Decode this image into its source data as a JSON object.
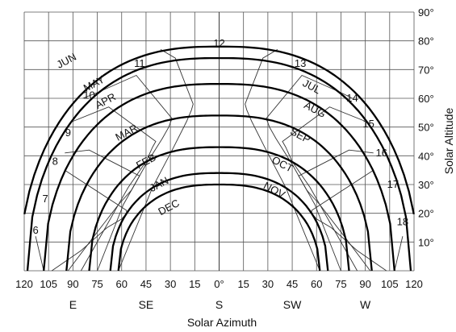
{
  "chart_data": {
    "type": "line",
    "title": "",
    "xlabel": "Solar Azimuth",
    "ylabel": "Solar Altitude",
    "xlim": [
      -120,
      120
    ],
    "ylim": [
      0,
      90
    ],
    "grid": true,
    "x_tick_labels": [
      "120",
      "105",
      "90",
      "75",
      "60",
      "45",
      "30",
      "15",
      "0°",
      "15",
      "30",
      "45",
      "60",
      "75",
      "90",
      "105",
      "120"
    ],
    "y_tick_labels": [
      "10°",
      "20°",
      "30°",
      "40°",
      "50°",
      "60°",
      "70°",
      "80°",
      "90°"
    ],
    "direction_labels": [
      {
        "text": "E",
        "azimuth": -90
      },
      {
        "text": "SE",
        "azimuth": -45
      },
      {
        "text": "S",
        "azimuth": 0
      },
      {
        "text": "SW",
        "azimuth": 45
      },
      {
        "text": "W",
        "azimuth": 90
      }
    ],
    "series": [
      {
        "name": "JUN",
        "noon_altitude": 78,
        "horizon_azimuth": 123
      },
      {
        "name": "MAY / JUL",
        "noon_altitude": 74,
        "horizon_azimuth": 118
      },
      {
        "name": "APR / AUG",
        "noon_altitude": 65,
        "horizon_azimuth": 108
      },
      {
        "name": "MAR / SEP",
        "noon_altitude": 54,
        "horizon_azimuth": 94
      },
      {
        "name": "FEB / OCT",
        "noon_altitude": 43,
        "horizon_azimuth": 80
      },
      {
        "name": "JAN / NOV",
        "noon_altitude": 34,
        "horizon_azimuth": 67
      },
      {
        "name": "DEC",
        "noon_altitude": 30,
        "horizon_azimuth": 62
      }
    ],
    "month_labels": [
      {
        "text": "JUN",
        "azimuth": -93,
        "altitude": 72
      },
      {
        "text": "MAY",
        "azimuth": -76,
        "altitude": 64
      },
      {
        "text": "APR",
        "azimuth": -69,
        "altitude": 58
      },
      {
        "text": "MAR",
        "azimuth": -56,
        "altitude": 47
      },
      {
        "text": "FEB",
        "azimuth": -44,
        "altitude": 37
      },
      {
        "text": "JAN",
        "azimuth": -36,
        "altitude": 29
      },
      {
        "text": "DEC",
        "azimuth": -30,
        "altitude": 21
      },
      {
        "text": "JUL",
        "azimuth": 56,
        "altitude": 63
      },
      {
        "text": "AUG",
        "azimuth": 58,
        "altitude": 55
      },
      {
        "text": "SEP",
        "azimuth": 49,
        "altitude": 46
      },
      {
        "text": "OCT",
        "azimuth": 38,
        "altitude": 36
      },
      {
        "text": "NOV",
        "azimuth": 33,
        "altitude": 27
      }
    ],
    "hour_lines": [
      {
        "label": "6",
        "points": [
          [
            -108,
            0
          ],
          [
            -113,
            12
          ]
        ],
        "label_at": [
          -113,
          14
        ]
      },
      {
        "label": "7",
        "points": [
          [
            -103,
            0
          ],
          [
            -85,
            7
          ],
          [
            -69,
            15
          ],
          [
            -60,
            18
          ],
          [
            -57,
            20
          ],
          [
            -57,
            21
          ],
          [
            -95,
            35
          ]
        ],
        "label_at": [
          -107,
          25
        ]
      },
      {
        "label": "8",
        "points": [
          [
            -93,
            0
          ],
          [
            -77,
            12
          ],
          [
            -62,
            23
          ],
          [
            -54,
            28
          ],
          [
            -51,
            31
          ],
          [
            -49,
            33
          ],
          [
            -80,
            42
          ],
          [
            -95,
            41
          ]
        ],
        "label_at": [
          -101,
          38
        ]
      },
      {
        "label": "9",
        "points": [
          [
            -85,
            0
          ],
          [
            -69,
            16
          ],
          [
            -56,
            29
          ],
          [
            -45,
            38
          ],
          [
            -41,
            43
          ],
          [
            -39,
            45
          ],
          [
            -68,
            57
          ],
          [
            -90,
            52
          ]
        ],
        "label_at": [
          -93,
          48
        ]
      },
      {
        "label": "10",
        "points": [
          [
            -75,
            0
          ],
          [
            -59,
            23
          ],
          [
            -45,
            37
          ],
          [
            -35,
            46
          ],
          [
            -31,
            50
          ],
          [
            -29,
            53
          ],
          [
            -51,
            68
          ],
          [
            -75,
            62
          ],
          [
            -84,
            60
          ]
        ],
        "label_at": [
          -80,
          61
        ]
      },
      {
        "label": "11",
        "points": [
          [
            -62,
            0
          ],
          [
            -41,
            29
          ],
          [
            -28,
            43
          ],
          [
            -20,
            52
          ],
          [
            -17,
            56
          ],
          [
            -16,
            58
          ],
          [
            -27,
            74
          ],
          [
            -36,
            77
          ]
        ],
        "label_at": [
          -49,
          72
        ]
      },
      {
        "label": "12",
        "points": [
          [
            0,
            0
          ],
          [
            0,
            90
          ]
        ],
        "label_at": [
          0,
          79
        ]
      },
      {
        "label": "13",
        "points": [
          [
            62,
            0
          ],
          [
            41,
            29
          ],
          [
            28,
            43
          ],
          [
            20,
            52
          ],
          [
            17,
            56
          ],
          [
            16,
            58
          ],
          [
            27,
            74
          ],
          [
            36,
            77
          ]
        ],
        "label_at": [
          50,
          72
        ]
      },
      {
        "label": "14",
        "points": [
          [
            75,
            0
          ],
          [
            59,
            23
          ],
          [
            45,
            37
          ],
          [
            35,
            46
          ],
          [
            31,
            50
          ],
          [
            29,
            53
          ],
          [
            51,
            68
          ],
          [
            75,
            62
          ],
          [
            82,
            60
          ]
        ],
        "label_at": [
          82,
          60
        ]
      },
      {
        "label": "15",
        "points": [
          [
            85,
            0
          ],
          [
            69,
            16
          ],
          [
            56,
            29
          ],
          [
            45,
            38
          ],
          [
            41,
            43
          ],
          [
            39,
            45
          ],
          [
            68,
            57
          ],
          [
            90,
            52
          ]
        ],
        "label_at": [
          92,
          51
        ]
      },
      {
        "label": "16",
        "points": [
          [
            93,
            0
          ],
          [
            77,
            12
          ],
          [
            62,
            23
          ],
          [
            54,
            28
          ],
          [
            51,
            31
          ],
          [
            49,
            33
          ],
          [
            80,
            42
          ],
          [
            95,
            41
          ]
        ],
        "label_at": [
          100,
          41
        ]
      },
      {
        "label": "17",
        "points": [
          [
            103,
            0
          ],
          [
            85,
            7
          ],
          [
            69,
            15
          ],
          [
            60,
            18
          ],
          [
            57,
            20
          ],
          [
            57,
            21
          ],
          [
            95,
            35
          ]
        ],
        "label_at": [
          107,
          30
        ]
      },
      {
        "label": "18",
        "points": [
          [
            108,
            0
          ],
          [
            113,
            12
          ]
        ],
        "label_at": [
          113,
          17
        ]
      }
    ]
  }
}
